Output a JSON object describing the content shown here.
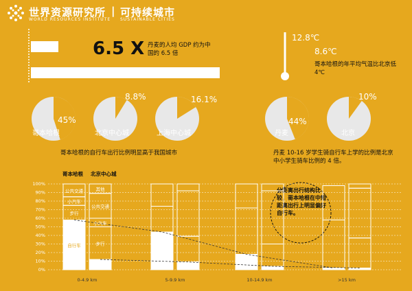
{
  "header": {
    "org_cn": "世界资源研究所",
    "org_en": "WORLD RESOURCES INSTITUTE",
    "sep": "|",
    "prog_cn": "可持续城市",
    "prog_en": "SUSTAINABLE CITIES"
  },
  "gdp": {
    "value": "6.5 X",
    "caption": "丹麦的人均 GDP 约为中国的 6.5 倍"
  },
  "temperature": {
    "beijing": "12.8℃",
    "copenhagen": "8.6℃",
    "caption": "哥本哈根的年平均气温比北京低 4℃"
  },
  "pies": {
    "copenhagen": {
      "label": "哥本哈根",
      "pct": "45%"
    },
    "beijing_center": {
      "label": "北京中心城",
      "pct": "8.8%"
    },
    "shanghai_center": {
      "label": "上海中心城",
      "pct": "16.1%"
    },
    "denmark": {
      "label": "丹麦",
      "pct": "44%"
    },
    "beijing": {
      "label": "北京",
      "pct": "10%"
    },
    "caption_left": "哥本哈根的自行车出行比例明显高于我国城市",
    "caption_right": "丹麦 10-16 岁学生骑自行车上学的比例是北京中小学生骑车比例的 4 倍。"
  },
  "callout": "分距离出行结构比较，哥本哈根在中短距离出行上明显偏好自行车。",
  "chart_data": {
    "type": "bar",
    "ylim": [
      0,
      100
    ],
    "yticks": [
      "0%",
      "10%",
      "20%",
      "30%",
      "40%",
      "50%",
      "60%",
      "70%",
      "80%",
      "90%",
      "100%"
    ],
    "categories": [
      "0-4.9 km",
      "5-9.9 km",
      "10-14.9 km",
      ">15 km"
    ],
    "legend": {
      "copenhagen": "哥本哈根",
      "beijing": "北京中心城"
    },
    "segment_labels": {
      "copenhagen": [
        "自行车",
        "步行",
        "小汽车",
        "公共交通"
      ],
      "beijing": [
        "自行车",
        "步行",
        "小汽车",
        "公共交通",
        "其他"
      ]
    },
    "series": [
      {
        "name": "哥本哈根",
        "segments": [
          [
            {
              "m": "自行车",
              "v": 58
            },
            {
              "m": "步行",
              "v": 17
            },
            {
              "m": "小汽车",
              "v": 10
            },
            {
              "m": "公共交通",
              "v": 15
            }
          ],
          [
            {
              "m": "自行车",
              "v": 44
            },
            {
              "m": "小汽车",
              "v": 30
            },
            {
              "m": "公共交通",
              "v": 26
            }
          ],
          [
            {
              "m": "自行车",
              "v": 18
            },
            {
              "m": "小汽车",
              "v": 54
            },
            {
              "m": "公共交通",
              "v": 28
            }
          ],
          [
            {
              "m": "自行车",
              "v": 2
            },
            {
              "m": "小汽车",
              "v": 56
            },
            {
              "m": "公共交通",
              "v": 40
            }
          ]
        ]
      },
      {
        "name": "北京中心城",
        "segments": [
          [
            {
              "m": "自行车",
              "v": 12
            },
            {
              "m": "步行",
              "v": 38
            },
            {
              "m": "小汽车",
              "v": 10
            },
            {
              "m": "公共交通",
              "v": 29
            },
            {
              "m": "其他",
              "v": 11
            }
          ],
          [
            {
              "m": "自行车",
              "v": 9
            },
            {
              "m": "小汽车",
              "v": 30
            },
            {
              "m": "公共交通",
              "v": 53
            },
            {
              "m": "其他",
              "v": 8
            }
          ],
          [
            {
              "m": "自行车",
              "v": 4
            },
            {
              "m": "小汽车",
              "v": 26
            },
            {
              "m": "公共交通",
              "v": 62
            },
            {
              "m": "其他",
              "v": 8
            }
          ],
          [
            {
              "m": "自行车",
              "v": 2
            },
            {
              "m": "小汽车",
              "v": 35
            },
            {
              "m": "公共交通",
              "v": 58
            },
            {
              "m": "其他",
              "v": 5
            }
          ]
        ]
      }
    ]
  },
  "colors": {
    "background": "#e6a81e",
    "foreground": "#ffffff",
    "pie_fill": "#e8e8e8"
  }
}
